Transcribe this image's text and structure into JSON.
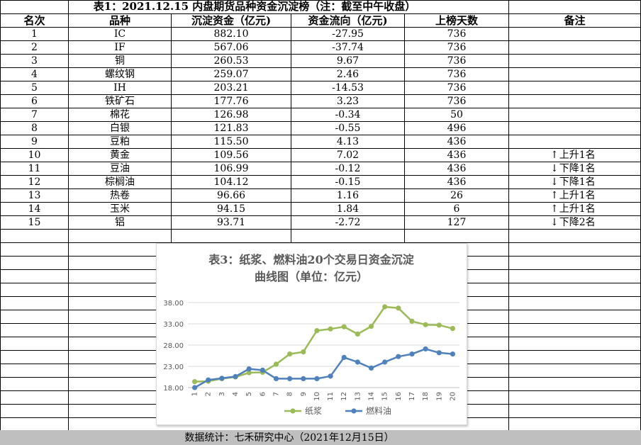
{
  "table": {
    "title": "表1：2021.12.15 内盘期货品种资金沉淀榜（注：截至中午收盘）",
    "headers": [
      "名次",
      "品种",
      "沉淀资金（亿元)",
      "资金流向（亿元)",
      "上榜天数",
      "备注"
    ],
    "rows": [
      {
        "rank": "1",
        "name": "IC",
        "amount": "882.10",
        "flow": "-27.95",
        "days": "736",
        "note": ""
      },
      {
        "rank": "2",
        "name": "IF",
        "amount": "567.06",
        "flow": "-37.74",
        "days": "736",
        "note": ""
      },
      {
        "rank": "3",
        "name": "铜",
        "amount": "260.53",
        "flow": "9.67",
        "days": "736",
        "note": ""
      },
      {
        "rank": "4",
        "name": "螺纹钢",
        "amount": "259.07",
        "flow": "2.46",
        "days": "736",
        "note": ""
      },
      {
        "rank": "5",
        "name": "IH",
        "amount": "203.21",
        "flow": "-14.53",
        "days": "736",
        "note": ""
      },
      {
        "rank": "6",
        "name": "铁矿石",
        "amount": "177.76",
        "flow": "3.23",
        "days": "736",
        "note": ""
      },
      {
        "rank": "7",
        "name": "棉花",
        "amount": "126.98",
        "flow": "-0.34",
        "days": "50",
        "note": ""
      },
      {
        "rank": "8",
        "name": "白银",
        "amount": "121.83",
        "flow": "-0.55",
        "days": "496",
        "note": ""
      },
      {
        "rank": "9",
        "name": "豆粕",
        "amount": "115.50",
        "flow": "4.13",
        "days": "436",
        "note": ""
      },
      {
        "rank": "10",
        "name": "黄金",
        "amount": "109.56",
        "flow": "7.02",
        "days": "436",
        "note": "上升1名",
        "dir": "up"
      },
      {
        "rank": "11",
        "name": "豆油",
        "amount": "106.99",
        "flow": "-0.12",
        "days": "436",
        "note": "下降1名",
        "dir": "down"
      },
      {
        "rank": "12",
        "name": "棕榈油",
        "amount": "104.12",
        "flow": "-0.15",
        "days": "436",
        "note": "下降1名",
        "dir": "down"
      },
      {
        "rank": "13",
        "name": "热卷",
        "amount": "96.66",
        "flow": "1.16",
        "days": "26",
        "note": "上升1名",
        "dir": "up"
      },
      {
        "rank": "14",
        "name": "玉米",
        "amount": "94.15",
        "flow": "1.84",
        "days": "6",
        "note": "上升1名",
        "dir": "up"
      },
      {
        "rank": "15",
        "name": "铝",
        "amount": "93.71",
        "flow": "-2.72",
        "days": "127",
        "note": "下降2名",
        "dir": "down"
      }
    ],
    "arrow_up": "↑",
    "arrow_down": "↓"
  },
  "footer": "数据统计：七禾研究中心（2021年12月15日）",
  "chart_data": {
    "type": "line",
    "title": "表3：纸浆、燃料油20个交易日资金沉淀曲线图（单位：亿元）",
    "title_line1": "表3：纸浆、燃料油20个交易日资金沉淀",
    "title_line2": "曲线图（单位：亿元）",
    "x": [
      "1",
      "2",
      "3",
      "4",
      "5",
      "6",
      "7",
      "8",
      "9",
      "10",
      "11",
      "12",
      "13",
      "14",
      "15",
      "16",
      "17",
      "18",
      "19",
      "20"
    ],
    "ylim": [
      18,
      38
    ],
    "yticks": [
      "18.00",
      "23.00",
      "28.00",
      "33.00",
      "38.00"
    ],
    "legend_position": "bottom",
    "series": [
      {
        "name": "纸浆",
        "color": "#9bbb59",
        "values": [
          19.4,
          19.5,
          20.1,
          20.5,
          21.5,
          21.6,
          23.5,
          25.9,
          26.4,
          31.4,
          31.8,
          32.3,
          30.6,
          32.4,
          37.0,
          36.7,
          33.6,
          32.8,
          32.7,
          31.9
        ]
      },
      {
        "name": "燃料油",
        "color": "#4f81bd",
        "values": [
          18.0,
          19.8,
          20.2,
          20.6,
          22.4,
          22.1,
          20.1,
          20.1,
          20.1,
          20.1,
          20.7,
          25.1,
          24.0,
          22.6,
          24.0,
          25.3,
          25.9,
          27.1,
          26.2,
          25.9
        ]
      }
    ]
  }
}
